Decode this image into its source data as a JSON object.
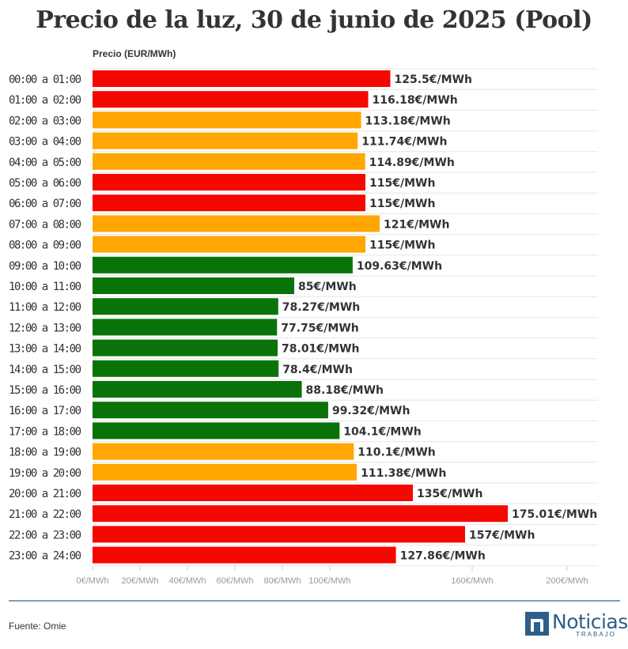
{
  "chart_data": {
    "type": "bar",
    "orientation": "horizontal",
    "title": "Precio de la luz, 30 de junio de 2025 (Pool)",
    "ylabel": "Precio (EUR/MWh)",
    "xlim": [
      0,
      210
    ],
    "unit_suffix": "€/MWh",
    "categories": [
      "00:00 a 01:00",
      "01:00 a 02:00",
      "02:00 a 03:00",
      "03:00 a 04:00",
      "04:00 a 05:00",
      "05:00 a 06:00",
      "06:00 a 07:00",
      "07:00 a 08:00",
      "08:00 a 09:00",
      "09:00 a 10:00",
      "10:00 a 11:00",
      "11:00 a 12:00",
      "12:00 a 13:00",
      "13:00 a 14:00",
      "14:00 a 15:00",
      "15:00 a 16:00",
      "16:00 a 17:00",
      "17:00 a 18:00",
      "18:00 a 19:00",
      "19:00 a 20:00",
      "20:00 a 21:00",
      "21:00 a 22:00",
      "22:00 a 23:00",
      "23:00 a 24:00"
    ],
    "values": [
      125.5,
      116.18,
      113.18,
      111.74,
      114.89,
      115,
      115,
      121,
      115,
      109.63,
      85,
      78.27,
      77.75,
      78.01,
      78.4,
      88.18,
      99.32,
      104.1,
      110.1,
      111.38,
      135,
      175.01,
      157,
      127.86
    ],
    "value_labels": [
      "125.5€/MWh",
      "116.18€/MWh",
      "113.18€/MWh",
      "111.74€/MWh",
      "114.89€/MWh",
      "115€/MWh",
      "115€/MWh",
      "121€/MWh",
      "115€/MWh",
      "109.63€/MWh",
      "85€/MWh",
      "78.27€/MWh",
      "77.75€/MWh",
      "78.01€/MWh",
      "78.4€/MWh",
      "88.18€/MWh",
      "99.32€/MWh",
      "104.1€/MWh",
      "110.1€/MWh",
      "111.38€/MWh",
      "135€/MWh",
      "175.01€/MWh",
      "157€/MWh",
      "127.86€/MWh"
    ],
    "levels": [
      "high",
      "high",
      "mid",
      "mid",
      "mid",
      "high",
      "high",
      "mid",
      "mid",
      "low",
      "low",
      "low",
      "low",
      "low",
      "low",
      "low",
      "low",
      "low",
      "mid",
      "mid",
      "high",
      "high",
      "high",
      "high"
    ],
    "colors": {
      "high": "#f50800",
      "mid": "#ffa600",
      "low": "#097309"
    },
    "x_ticks": [
      0,
      20,
      40,
      60,
      80,
      100,
      160,
      200
    ],
    "x_tick_labels": [
      "0€/MWh",
      "20€/MWh",
      "40€/MWh",
      "60€/MWh",
      "80€/MWh",
      "100€/MWh",
      "160€/MWh",
      "200€/MWh"
    ],
    "grid": true
  },
  "footer": {
    "source": "Fuente: Omie",
    "logo_name": "Noticias",
    "logo_sub": "TRABAJO",
    "logo_mark": "n"
  }
}
